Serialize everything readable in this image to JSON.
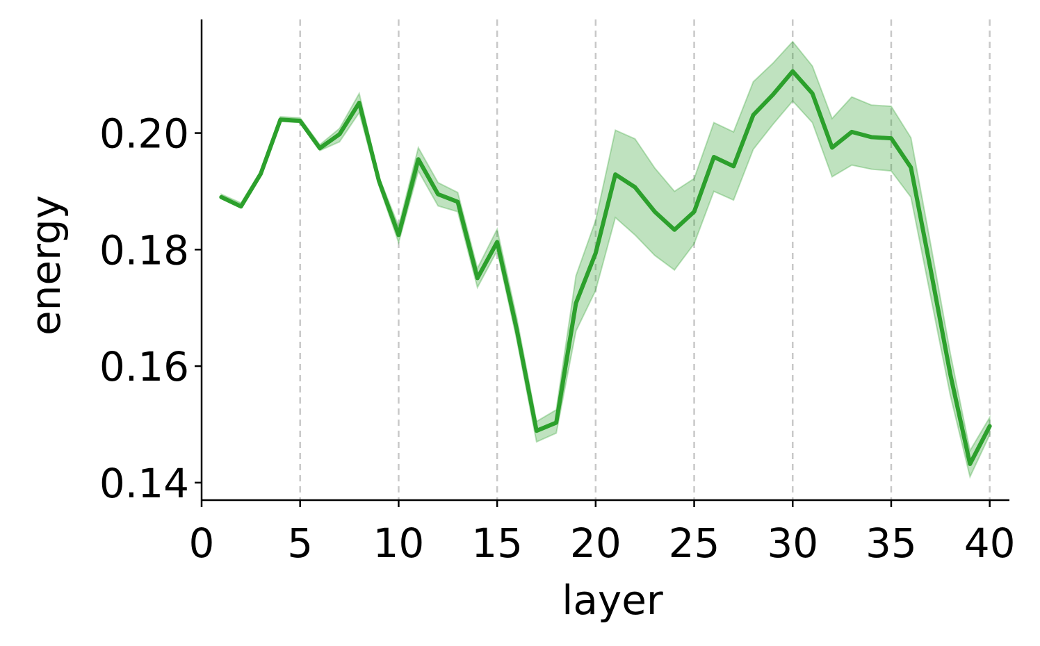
{
  "chart_data": {
    "type": "line",
    "title": "",
    "xlabel": "layer",
    "ylabel": "energy",
    "xlim": [
      0,
      41
    ],
    "ylim": [
      0.137,
      0.2195
    ],
    "xticks": [
      0,
      5,
      10,
      15,
      20,
      25,
      30,
      35,
      40
    ],
    "xtick_labels": [
      "0",
      "5",
      "10",
      "15",
      "20",
      "25",
      "30",
      "35",
      "40"
    ],
    "yticks": [
      0.14,
      0.16,
      0.18,
      0.2
    ],
    "ytick_labels": [
      "0.14",
      "0.16",
      "0.18",
      "0.20"
    ],
    "vertical_gridlines_at": [
      5,
      10,
      15,
      20,
      25,
      30,
      35,
      40
    ],
    "grid": "x-dashed",
    "legend": "none",
    "series": [
      {
        "color": "#2ca02c",
        "band_color": "#2ca02c",
        "x": [
          1,
          2,
          3,
          4,
          5,
          6,
          7,
          8,
          9,
          10,
          11,
          12,
          13,
          14,
          15,
          16,
          17,
          18,
          19,
          20,
          21,
          22,
          23,
          24,
          25,
          26,
          27,
          28,
          29,
          30,
          31,
          32,
          33,
          34,
          35,
          36,
          37,
          38,
          39,
          40
        ],
        "y": [
          0.189,
          0.1874,
          0.193,
          0.2023,
          0.2021,
          0.1974,
          0.1998,
          0.2052,
          0.1918,
          0.1825,
          0.1955,
          0.1895,
          0.1882,
          0.1751,
          0.1813,
          0.1662,
          0.1489,
          0.1503,
          0.1708,
          0.1794,
          0.1929,
          0.1907,
          0.1865,
          0.1834,
          0.1865,
          0.1959,
          0.1943,
          0.2031,
          0.2066,
          0.2106,
          0.2068,
          0.1975,
          0.2002,
          0.1993,
          0.1991,
          0.1941,
          0.1766,
          0.1586,
          0.1432,
          0.1497
        ],
        "lower": [
          0.1888,
          0.1872,
          0.1928,
          0.202,
          0.2018,
          0.197,
          0.1985,
          0.2035,
          0.191,
          0.1812,
          0.1935,
          0.1875,
          0.1865,
          0.1735,
          0.1798,
          0.1645,
          0.147,
          0.1485,
          0.166,
          0.173,
          0.1855,
          0.1825,
          0.179,
          0.1765,
          0.181,
          0.19,
          0.1885,
          0.1972,
          0.2015,
          0.2055,
          0.2018,
          0.1925,
          0.1945,
          0.1938,
          0.1935,
          0.189,
          0.172,
          0.155,
          0.141,
          0.1482
        ],
        "upper": [
          0.1895,
          0.188,
          0.1935,
          0.2028,
          0.2026,
          0.198,
          0.2008,
          0.2068,
          0.1925,
          0.184,
          0.1975,
          0.1915,
          0.1898,
          0.1768,
          0.1835,
          0.1682,
          0.1505,
          0.1525,
          0.1755,
          0.185,
          0.2005,
          0.199,
          0.194,
          0.19,
          0.1922,
          0.2018,
          0.2002,
          0.2088,
          0.212,
          0.2157,
          0.2115,
          0.2025,
          0.2062,
          0.2048,
          0.2046,
          0.1992,
          0.181,
          0.1622,
          0.1455,
          0.1512
        ]
      }
    ]
  }
}
